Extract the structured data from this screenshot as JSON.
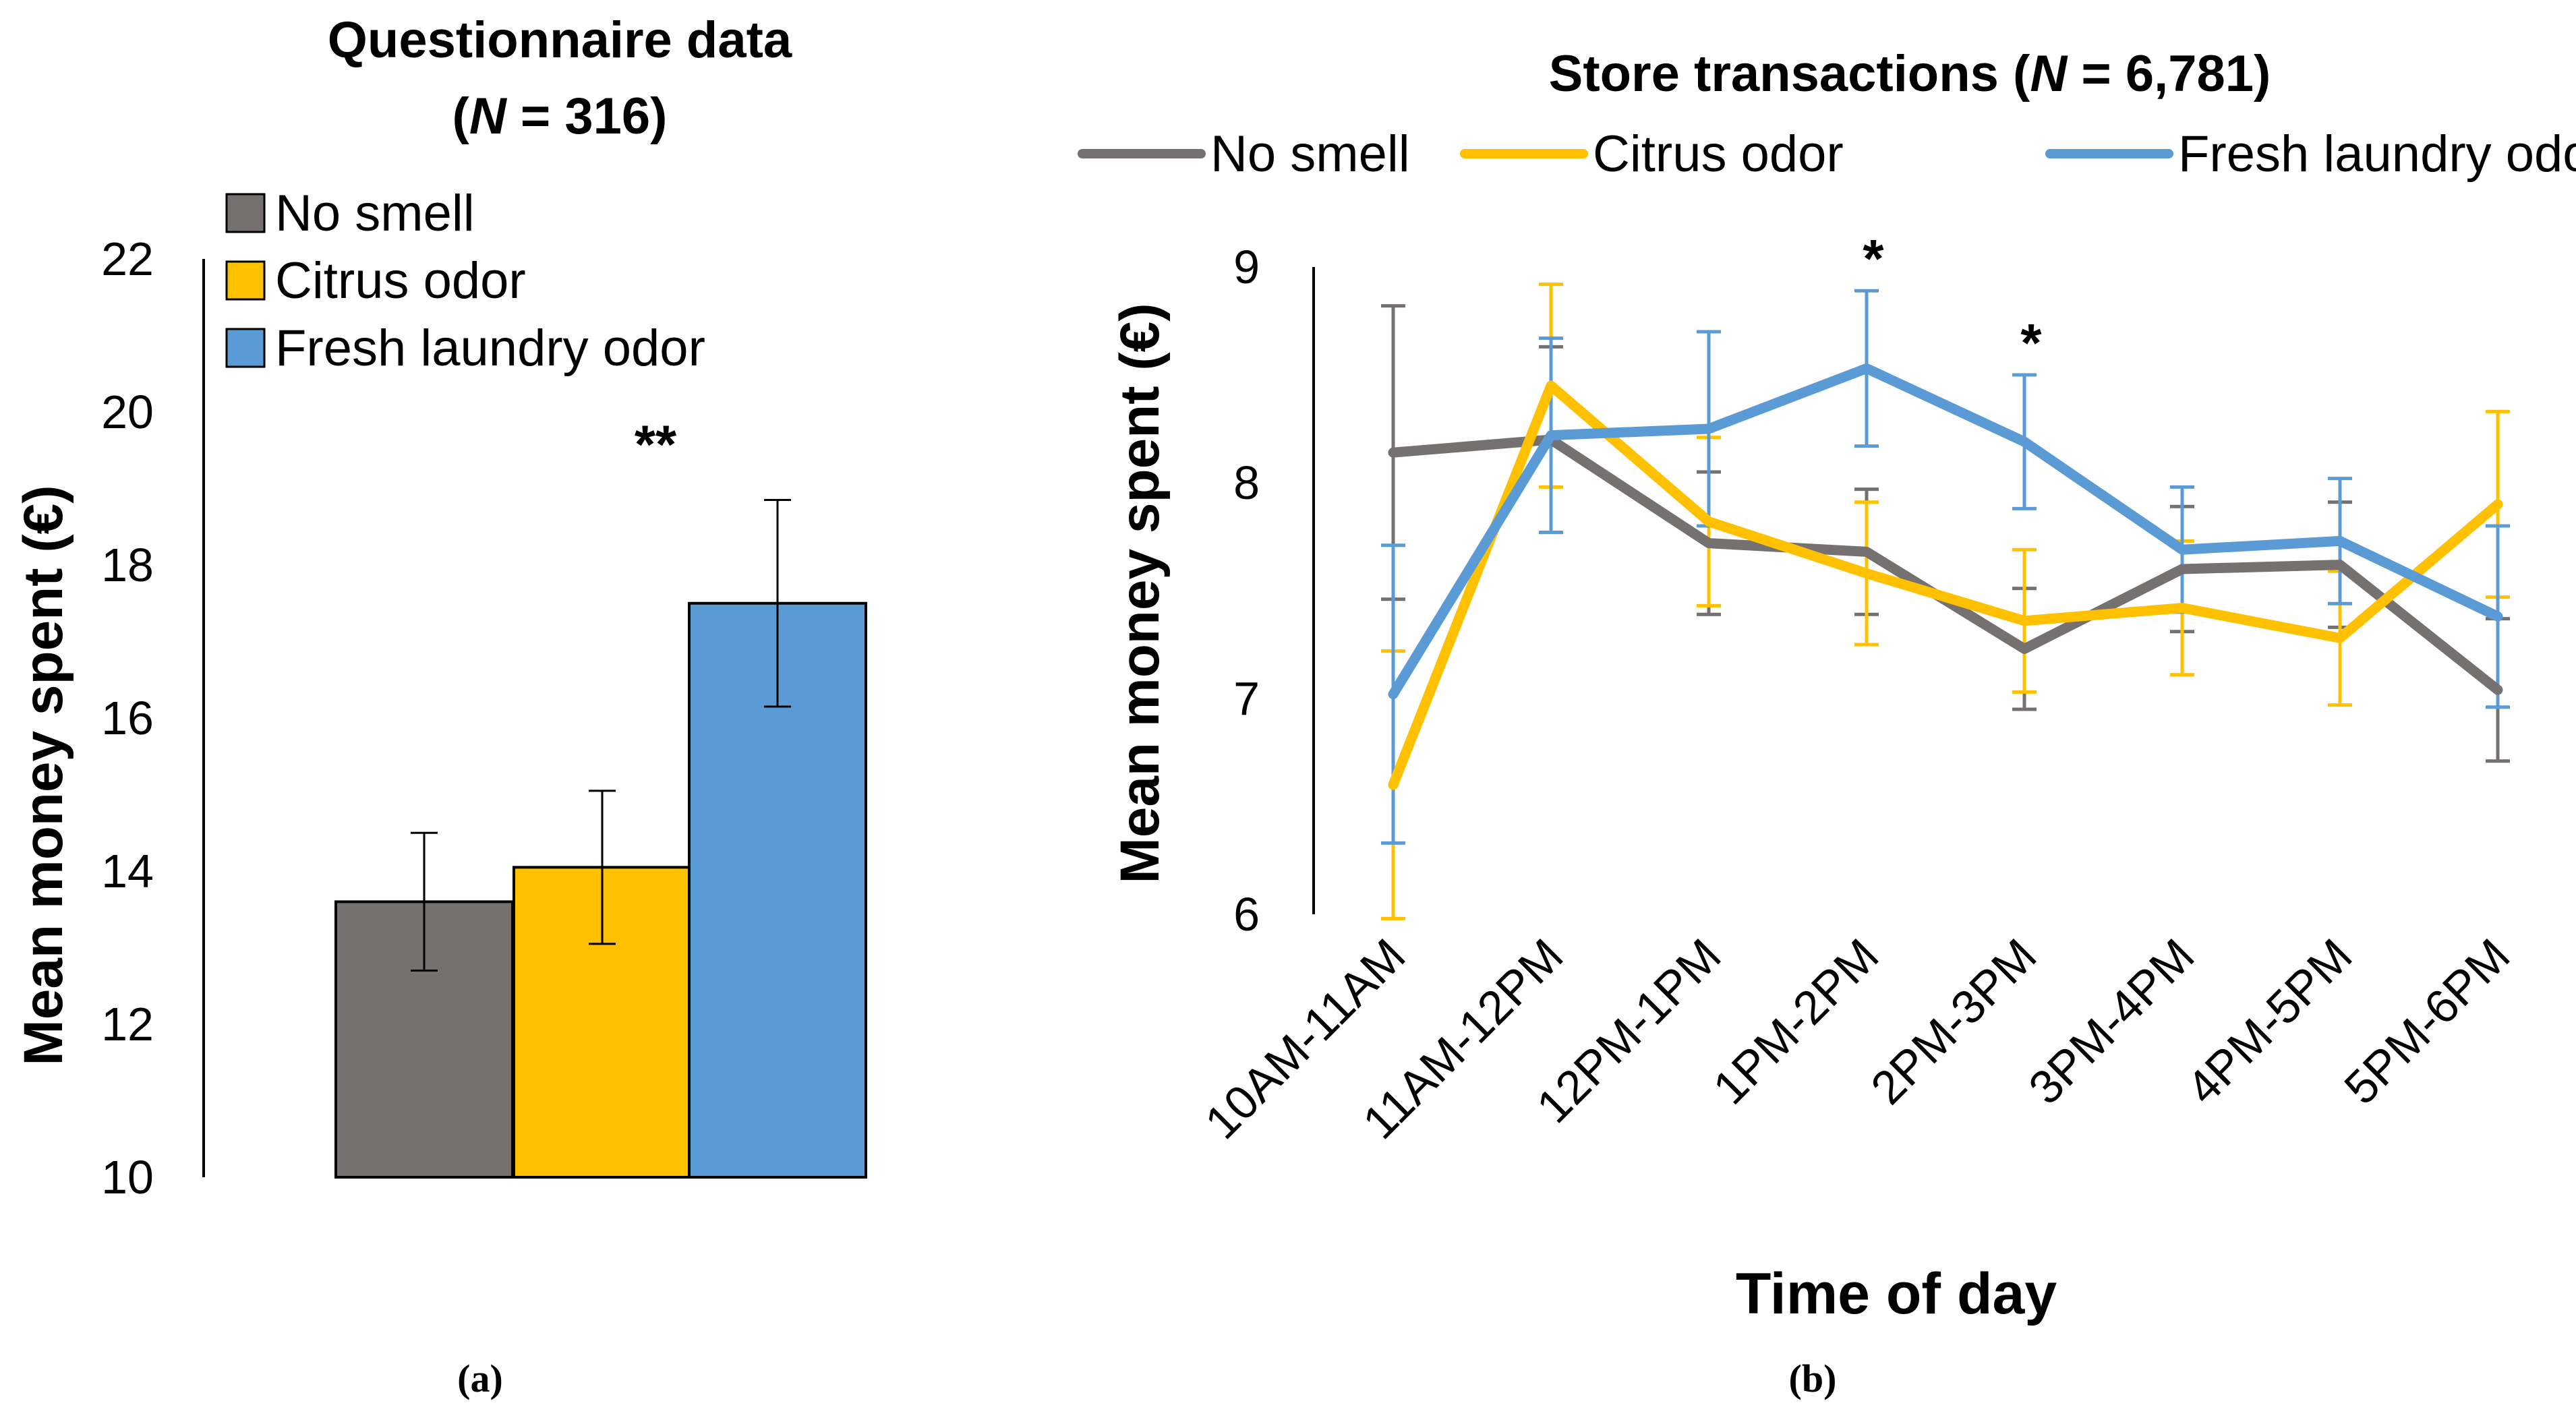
{
  "charts": [
    {
      "panel_label": "(a)",
      "title_line1": "Questionnaire data",
      "title_line2_prefix": "(",
      "title_line2_n": "N",
      "title_line2_suffix": " = 316)",
      "ylabel": "Mean money spent (€)",
      "significance": "**"
    },
    {
      "panel_label": "(b)",
      "title_prefix": "Store transactions (",
      "title_n": "N",
      "title_suffix": " = 6,781)",
      "ylabel": "Mean money spent (€)",
      "xlabel": "Time of day",
      "sig_1": "*",
      "sig_2": "*"
    }
  ],
  "chart_data": [
    {
      "type": "bar",
      "title": "Questionnaire data (N = 316)",
      "ylabel": "Mean money spent (€)",
      "xlabel": "",
      "ylim": [
        10,
        22
      ],
      "yticks": [
        "10",
        "12",
        "14",
        "16",
        "18",
        "20",
        "22"
      ],
      "legend_position": "top-left",
      "categories": [
        "No smell",
        "Citrus odor",
        "Fresh laundry odor"
      ],
      "values": [
        13.6,
        14.05,
        17.5
      ],
      "error": [
        0.9,
        1.0,
        1.35
      ],
      "colors": [
        "#767171",
        "#FFC000",
        "#5B9BD5"
      ],
      "annotations": [
        {
          "category": "Fresh laundry odor",
          "text": "**"
        }
      ]
    },
    {
      "type": "line",
      "title": "Store transactions (N = 6,781)",
      "ylabel": "Mean money spent (€)",
      "xlabel": "Time of day",
      "ylim": [
        6,
        9
      ],
      "yticks": [
        "6",
        "7",
        "8",
        "9"
      ],
      "legend_position": "top",
      "categories": [
        "10AM-11AM",
        "11AM-12PM",
        "12PM-1PM",
        "1PM-2PM",
        "2PM-3PM",
        "3PM-4PM",
        "4PM-5PM",
        "5PM-6PM"
      ],
      "series": [
        {
          "name": "No smell",
          "color": "#767171",
          "values": [
            8.14,
            8.2,
            7.72,
            7.68,
            7.23,
            7.6,
            7.62,
            7.04
          ],
          "error": [
            0.68,
            0.43,
            0.33,
            0.29,
            0.28,
            0.29,
            0.29,
            0.33
          ]
        },
        {
          "name": "Citrus odor",
          "color": "#FFC000",
          "values": [
            6.6,
            8.45,
            7.82,
            7.58,
            7.36,
            7.42,
            7.28,
            7.9
          ],
          "error": [
            0.62,
            0.47,
            0.39,
            0.33,
            0.33,
            0.31,
            0.31,
            0.43
          ]
        },
        {
          "name": "Fresh laundry odor",
          "color": "#5B9BD5",
          "values": [
            7.02,
            8.22,
            8.25,
            8.53,
            8.19,
            7.69,
            7.73,
            7.38
          ],
          "error": [
            0.69,
            0.45,
            0.45,
            0.36,
            0.31,
            0.29,
            0.29,
            0.42
          ]
        }
      ],
      "annotations": [
        {
          "category": "1PM-2PM",
          "text": "*"
        },
        {
          "category": "2PM-3PM",
          "text": "*"
        }
      ]
    }
  ]
}
